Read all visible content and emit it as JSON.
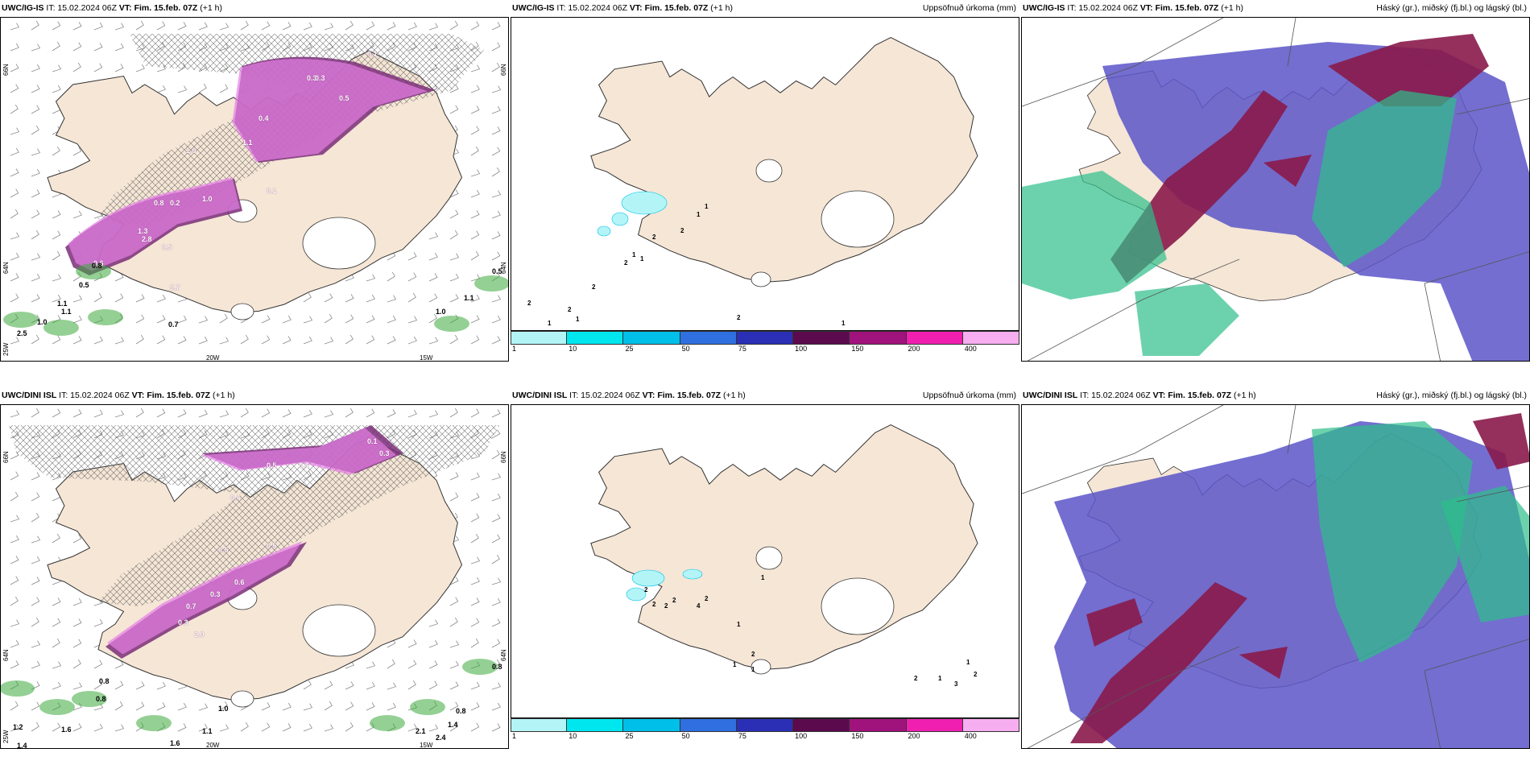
{
  "panels": [
    {
      "id": "top-left",
      "header_model": "UWC/IG-IS",
      "header_rest": " IT: 15.02.2024 06Z ",
      "header_vt_label": "VT:",
      "header_vt": " Fim. 15.feb. 07Z",
      "header_plus": " (+1 h)",
      "header_right": "",
      "coords": {
        "lat_top": "66N",
        "lat_mid": "64N",
        "lon_left": "20W",
        "lon_right": "15W",
        "lon_corner": "25W"
      },
      "precip_labels": [
        "0.1",
        "0.3",
        "0.5",
        "0.4",
        "1.0",
        "0.8",
        "1.3",
        "2.8",
        "1.1",
        "0.6",
        "0.2",
        "0.5",
        "0.3",
        "0.1",
        "1.0",
        "0.7"
      ],
      "green_labels": [
        "1.1",
        "1.1",
        "1.0",
        "2.5",
        "0.7",
        "1.0",
        "1.1",
        "0.5",
        "0.8",
        "0.5"
      ]
    },
    {
      "id": "top-middle",
      "header_model": "UWC/IG-IS",
      "header_rest": " IT: 15.02.2024 06Z ",
      "header_vt_label": "VT:",
      "header_vt": " Fim. 15.feb. 07Z",
      "header_plus": " (+1 h)",
      "header_right": "Uppsöfnuð úrkoma (mm)",
      "point_labels": [
        "2",
        "1",
        "2",
        "1",
        "2",
        "2",
        "1",
        "1",
        "2",
        "2",
        "1",
        "1",
        "1",
        "2",
        "1"
      ]
    },
    {
      "id": "top-right",
      "header_model": "UWC/IG-IS",
      "header_rest": " IT: 15.02.2024 06Z ",
      "header_vt_label": "VT:",
      "header_vt": " Fim. 15.feb. 07Z",
      "header_plus": " (+1 h)",
      "header_right": "Háský (gr.), miðský (fj.bl.) og lágský (bl.)"
    },
    {
      "id": "bottom-left",
      "header_model": "UWC/DINI ISL",
      "header_rest": " IT: 15.02.2024 06Z ",
      "header_vt_label": "VT:",
      "header_vt": " Fim. 15.feb. 07Z",
      "header_plus": " (+1 h)",
      "header_right": "",
      "coords": {
        "lat_top": "66N",
        "lat_mid": "64N",
        "lon_left": "20W",
        "lon_right": "15W",
        "lon_corner": "25W"
      },
      "precip_labels": [
        "0.1",
        "0.3",
        "0.5",
        "0.4",
        "0.5",
        "0.6",
        "0.3",
        "0.7",
        "2.0",
        "0.5",
        "0.4",
        "0.3"
      ],
      "green_labels": [
        "0.8",
        "0.8",
        "1.6",
        "1.4",
        "1.2",
        "1.6",
        "1.1",
        "1.0",
        "0.8",
        "1.4",
        "2.1",
        "2.4",
        "0.8"
      ]
    },
    {
      "id": "bottom-middle",
      "header_model": "UWC/DINI ISL",
      "header_rest": " IT: 15.02.2024 06Z ",
      "header_vt_label": "VT:",
      "header_vt": " Fim. 15.feb. 07Z",
      "header_plus": " (+1 h)",
      "header_right": "Uppsöfnuð úrkoma (mm)",
      "point_labels": [
        "1",
        "2",
        "2",
        "2",
        "2",
        "4",
        "2",
        "1",
        "2",
        "1",
        "1",
        "2",
        "2",
        "1",
        "1",
        "3",
        "2"
      ]
    },
    {
      "id": "bottom-right",
      "header_model": "UWC/DINI ISL",
      "header_rest": " IT: 15.02.2024 06Z ",
      "header_vt_label": "VT:",
      "header_vt": " Fim. 15.feb. 07Z",
      "header_plus": " (+1 h)",
      "header_right": "Háský (gr.), miðský (fj.bl.) og lágský (bl.)"
    }
  ],
  "legend": {
    "labels": [
      "1",
      "10",
      "25",
      "50",
      "75",
      "100",
      "150",
      "200",
      "400"
    ],
    "colors": [
      "#b3f5f7",
      "#00e6ee",
      "#00bfe8",
      "#2f6fe0",
      "#2a2fb5",
      "#5b0a4e",
      "#a0127c",
      "#f01fb0",
      "#f6aef0"
    ]
  },
  "colors": {
    "land": "#f5e6d6",
    "coast": "#333333",
    "precip_light": "#e67fe6",
    "precip_dark": "#7a2e78",
    "green_precip": "#3caa3c",
    "high_cloud": "#8a1a4a",
    "mid_cloud": "#5b55c8",
    "low_cloud": "#2dbf8a"
  }
}
